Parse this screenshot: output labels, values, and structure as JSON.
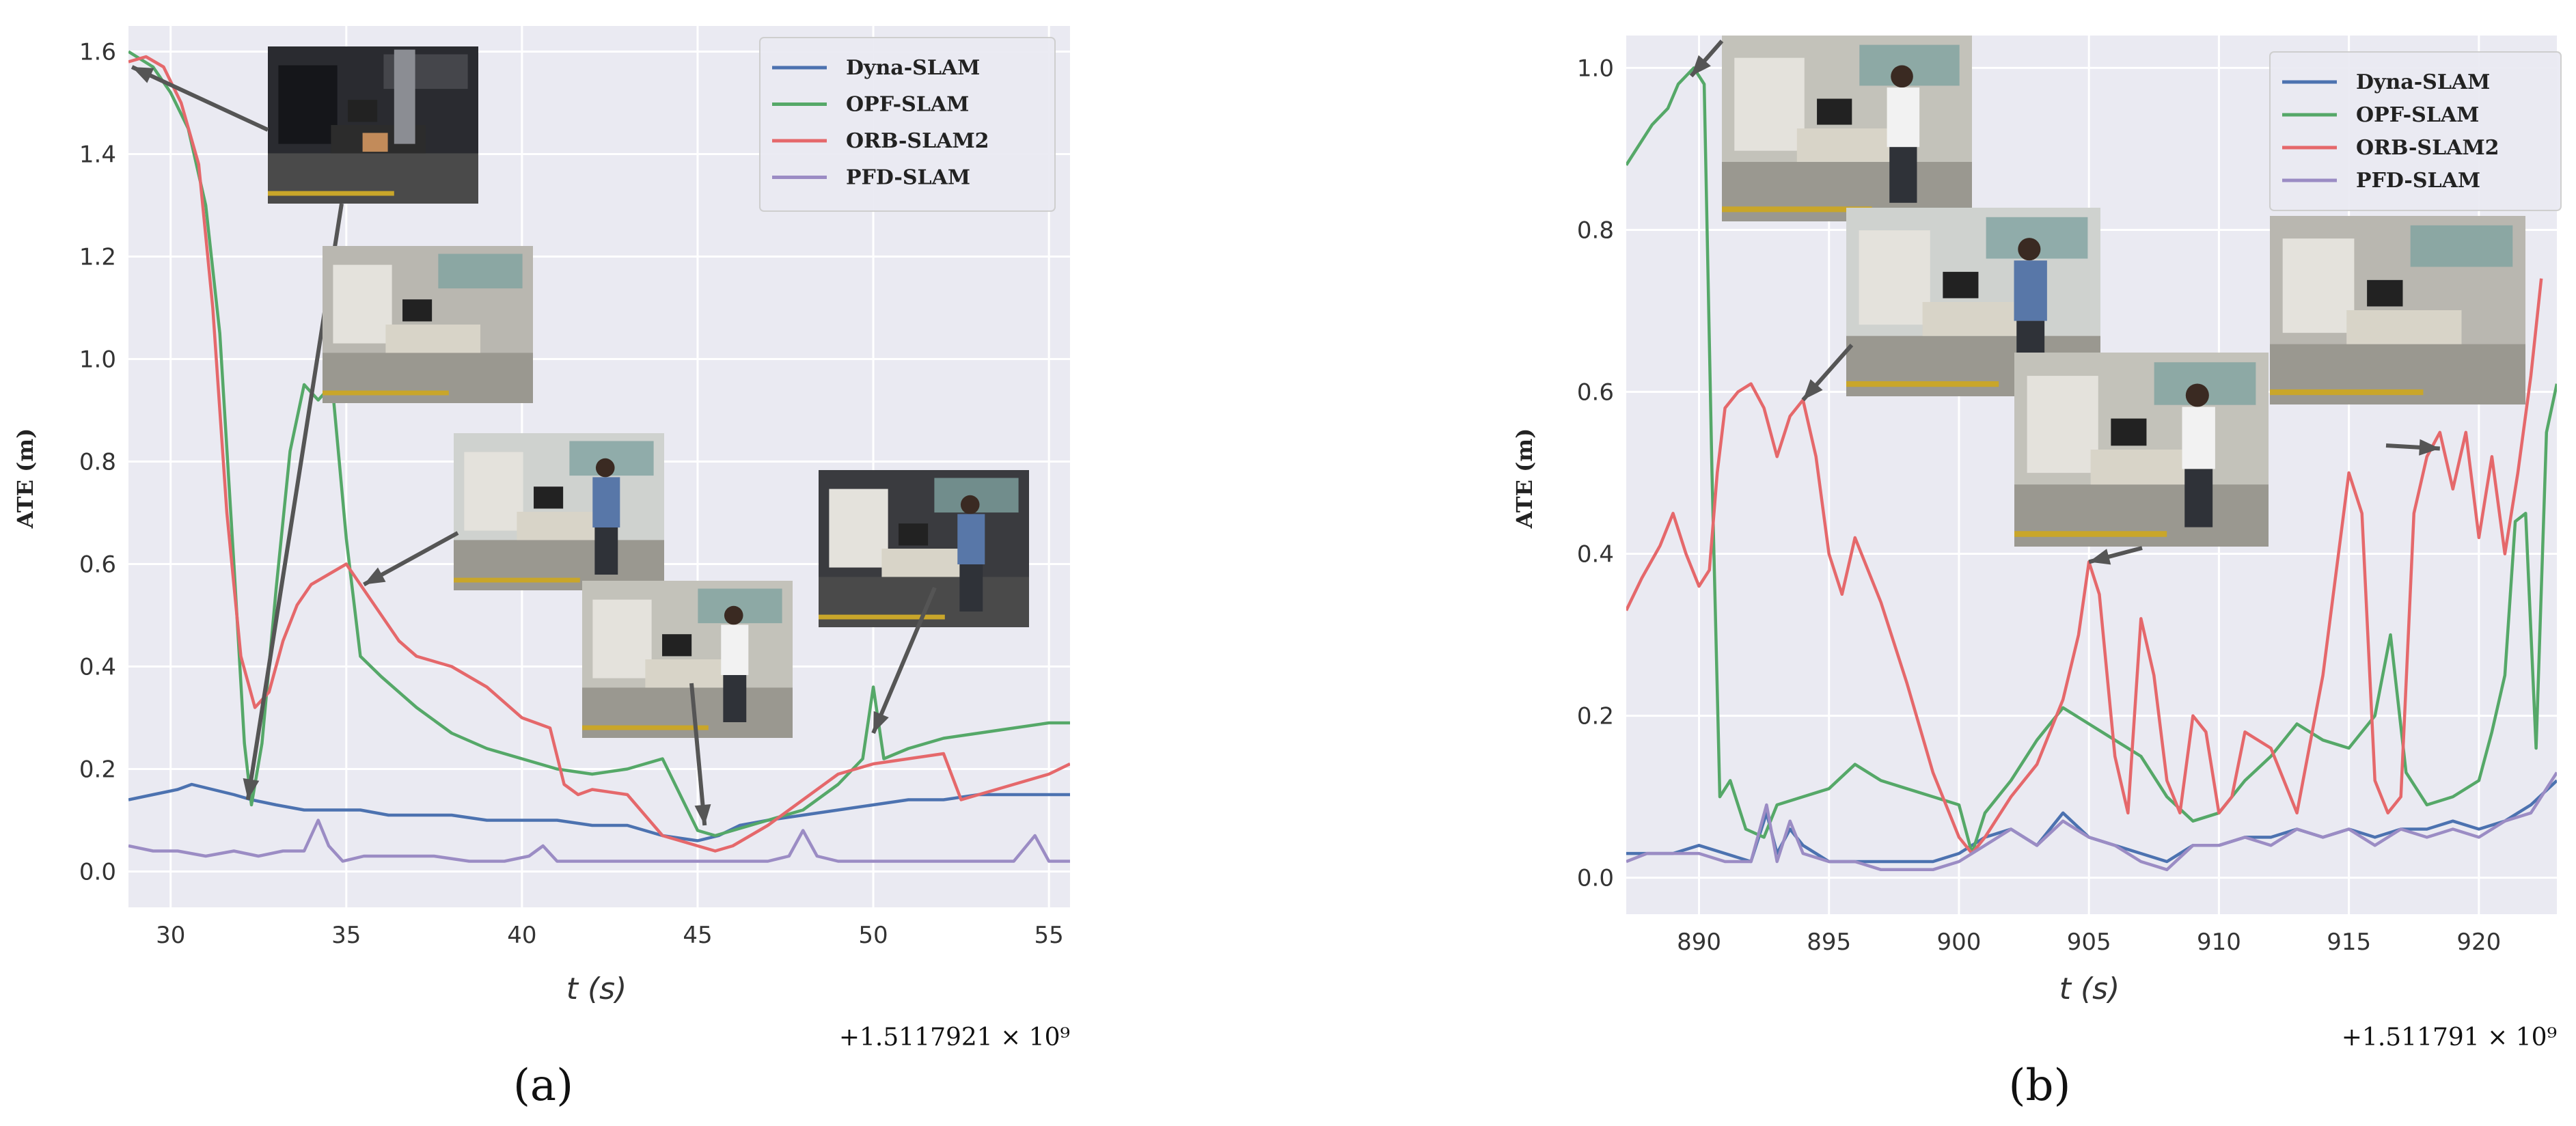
{
  "colors": {
    "plot_bg": "#eaeaf2",
    "grid": "#ffffff",
    "dyna": "#4c72b0",
    "opf": "#55a868",
    "orb": "#e5686b",
    "pfd": "#9b8cc4",
    "arrow": "#555555",
    "text": "#333333"
  },
  "chart_data": [
    {
      "type": "line",
      "panel_label": "(a)",
      "xlabel": "t (s)",
      "ylabel": "ATE (m)",
      "offset_label": "+1.5117921 × 10⁹",
      "xlim": [
        28.8,
        55.6
      ],
      "ylim": [
        -0.07,
        1.65
      ],
      "xticks": [
        30,
        35,
        40,
        45,
        50,
        55
      ],
      "yticks": [
        0.0,
        0.2,
        0.4,
        0.6,
        0.8,
        1.0,
        1.2,
        1.4,
        1.6
      ],
      "xtick_labels": [
        "30",
        "35",
        "40",
        "45",
        "50",
        "55"
      ],
      "ytick_labels": [
        "0.0",
        "0.2",
        "0.4",
        "0.6",
        "0.8",
        "1.0",
        "1.2",
        "1.4",
        "1.6"
      ],
      "legend": [
        "Dyna-SLAM",
        "OPF-SLAM",
        "ORB-SLAM2",
        "PFD-SLAM"
      ],
      "legend_position": "top-right",
      "series": [
        {
          "name": "Dyna-SLAM",
          "x": [
            28.8,
            29.5,
            30.2,
            30.6,
            31.2,
            31.8,
            32.3,
            33.0,
            33.8,
            34.6,
            35.4,
            36.2,
            37.0,
            38.0,
            39.0,
            40.0,
            41.0,
            42.0,
            43.0,
            44.0,
            45.0,
            45.6,
            46.2,
            47.0,
            48.0,
            49.0,
            50.0,
            51.0,
            52.0,
            53.0,
            54.0,
            55.0,
            55.6
          ],
          "y": [
            0.14,
            0.15,
            0.16,
            0.17,
            0.16,
            0.15,
            0.14,
            0.13,
            0.12,
            0.12,
            0.12,
            0.11,
            0.11,
            0.11,
            0.1,
            0.1,
            0.1,
            0.09,
            0.09,
            0.07,
            0.06,
            0.07,
            0.09,
            0.1,
            0.11,
            0.12,
            0.13,
            0.14,
            0.14,
            0.15,
            0.15,
            0.15,
            0.15
          ]
        },
        {
          "name": "OPF-SLAM",
          "x": [
            28.8,
            29.5,
            30.0,
            30.5,
            31.0,
            31.4,
            31.8,
            32.1,
            32.3,
            32.6,
            33.0,
            33.4,
            33.8,
            34.2,
            34.6,
            35.0,
            35.4,
            36.0,
            37.0,
            38.0,
            39.0,
            40.0,
            41.0,
            42.0,
            43.0,
            44.0,
            44.5,
            45.0,
            45.5,
            46.0,
            47.0,
            48.0,
            49.0,
            49.7,
            50.0,
            50.3,
            51.0,
            52.0,
            53.0,
            54.0,
            55.0,
            55.6
          ],
          "y": [
            1.6,
            1.57,
            1.52,
            1.45,
            1.3,
            1.05,
            0.6,
            0.25,
            0.13,
            0.25,
            0.55,
            0.82,
            0.95,
            0.92,
            0.95,
            0.65,
            0.42,
            0.38,
            0.32,
            0.27,
            0.24,
            0.22,
            0.2,
            0.19,
            0.2,
            0.22,
            0.15,
            0.08,
            0.07,
            0.08,
            0.1,
            0.12,
            0.17,
            0.22,
            0.36,
            0.22,
            0.24,
            0.26,
            0.27,
            0.28,
            0.29,
            0.29
          ]
        },
        {
          "name": "ORB-SLAM2",
          "x": [
            28.8,
            29.3,
            29.8,
            30.3,
            30.8,
            31.2,
            31.6,
            32.0,
            32.4,
            32.8,
            33.2,
            33.6,
            34.0,
            34.5,
            35.0,
            35.5,
            36.0,
            36.5,
            37.0,
            38.0,
            39.0,
            40.0,
            40.8,
            41.2,
            41.6,
            42.0,
            43.0,
            44.0,
            45.0,
            45.5,
            46.0,
            47.0,
            48.0,
            49.0,
            50.0,
            51.0,
            52.0,
            52.5,
            53.0,
            54.0,
            55.0,
            55.6
          ],
          "y": [
            1.58,
            1.59,
            1.57,
            1.5,
            1.38,
            1.1,
            0.7,
            0.42,
            0.32,
            0.35,
            0.45,
            0.52,
            0.56,
            0.58,
            0.6,
            0.55,
            0.5,
            0.45,
            0.42,
            0.4,
            0.36,
            0.3,
            0.28,
            0.17,
            0.15,
            0.16,
            0.15,
            0.07,
            0.05,
            0.04,
            0.05,
            0.09,
            0.14,
            0.19,
            0.21,
            0.22,
            0.23,
            0.14,
            0.15,
            0.17,
            0.19,
            0.21
          ]
        },
        {
          "name": "PFD-SLAM",
          "x": [
            28.8,
            29.5,
            30.2,
            31.0,
            31.8,
            32.5,
            33.2,
            33.8,
            34.2,
            34.5,
            34.9,
            35.5,
            36.5,
            37.5,
            38.5,
            39.5,
            40.2,
            40.6,
            41.0,
            42.0,
            43.0,
            44.0,
            45.0,
            46.0,
            47.0,
            47.6,
            48.0,
            48.4,
            49.0,
            50.0,
            51.0,
            52.0,
            53.0,
            54.0,
            54.6,
            55.0,
            55.6
          ],
          "y": [
            0.05,
            0.04,
            0.04,
            0.03,
            0.04,
            0.03,
            0.04,
            0.04,
            0.1,
            0.05,
            0.02,
            0.03,
            0.03,
            0.03,
            0.02,
            0.02,
            0.03,
            0.05,
            0.02,
            0.02,
            0.02,
            0.02,
            0.02,
            0.02,
            0.02,
            0.03,
            0.08,
            0.03,
            0.02,
            0.02,
            0.02,
            0.02,
            0.02,
            0.02,
            0.07,
            0.02,
            0.02
          ]
        }
      ],
      "insets": [
        {
          "name": "inset-a1",
          "scene": "dark",
          "arrow_to": [
            [
              28.9,
              1.57
            ],
            [
              32.2,
              0.14
            ]
          ]
        },
        {
          "name": "inset-a2",
          "scene": "office"
        },
        {
          "name": "inset-a3",
          "scene": "person",
          "arrow_to": [
            [
              35.5,
              0.56
            ]
          ]
        },
        {
          "name": "inset-a4",
          "scene": "lab",
          "arrow_to": [
            [
              45.2,
              0.09
            ]
          ]
        },
        {
          "name": "inset-a5",
          "scene": "person-dark",
          "arrow_to": [
            [
              50.0,
              0.27
            ]
          ]
        }
      ]
    },
    {
      "type": "line",
      "panel_label": "(b)",
      "xlabel": "t (s)",
      "ylabel": "ATE (m)",
      "offset_label": "+1.511791 × 10⁹",
      "xlim": [
        887.2,
        923.0
      ],
      "ylim": [
        -0.045,
        1.04
      ],
      "xticks": [
        890,
        895,
        900,
        905,
        910,
        915,
        920
      ],
      "yticks": [
        0.0,
        0.2,
        0.4,
        0.6,
        0.8,
        1.0
      ],
      "xtick_labels": [
        "890",
        "895",
        "900",
        "905",
        "910",
        "915",
        "920"
      ],
      "ytick_labels": [
        "0.0",
        "0.2",
        "0.4",
        "0.6",
        "0.8",
        "1.0"
      ],
      "legend": [
        "Dyna-SLAM",
        "OPF-SLAM",
        "ORB-SLAM2",
        "PFD-SLAM"
      ],
      "legend_position": "top-right",
      "series": [
        {
          "name": "Dyna-SLAM",
          "x": [
            887.2,
            888.0,
            889.0,
            890.0,
            891.0,
            892.0,
            892.6,
            893.0,
            893.5,
            894.0,
            895.0,
            896.0,
            897.0,
            898.0,
            899.0,
            900.0,
            901.0,
            902.0,
            903.0,
            904.0,
            905.0,
            906.0,
            907.0,
            908.0,
            909.0,
            910.0,
            911.0,
            912.0,
            913.0,
            914.0,
            915.0,
            916.0,
            917.0,
            918.0,
            919.0,
            920.0,
            921.0,
            922.0,
            923.0
          ],
          "y": [
            0.03,
            0.03,
            0.03,
            0.04,
            0.03,
            0.02,
            0.08,
            0.03,
            0.06,
            0.04,
            0.02,
            0.02,
            0.02,
            0.02,
            0.02,
            0.03,
            0.05,
            0.06,
            0.04,
            0.08,
            0.05,
            0.04,
            0.03,
            0.02,
            0.04,
            0.04,
            0.05,
            0.05,
            0.06,
            0.05,
            0.06,
            0.05,
            0.06,
            0.06,
            0.07,
            0.06,
            0.07,
            0.09,
            0.12
          ]
        },
        {
          "name": "OPF-SLAM",
          "x": [
            887.2,
            887.6,
            888.2,
            888.8,
            889.2,
            889.8,
            890.2,
            890.5,
            890.8,
            891.2,
            891.8,
            892.5,
            893.0,
            894.0,
            895.0,
            896.0,
            897.0,
            898.0,
            899.0,
            900.0,
            900.5,
            901.0,
            902.0,
            903.0,
            904.0,
            905.0,
            906.0,
            907.0,
            908.0,
            909.0,
            910.0,
            911.0,
            912.0,
            913.0,
            914.0,
            915.0,
            916.0,
            916.6,
            917.2,
            918.0,
            919.0,
            920.0,
            920.5,
            921.0,
            921.4,
            921.8,
            922.2,
            922.6,
            923.0
          ],
          "y": [
            0.88,
            0.9,
            0.93,
            0.95,
            0.98,
            1.0,
            0.98,
            0.5,
            0.1,
            0.12,
            0.06,
            0.05,
            0.09,
            0.1,
            0.11,
            0.14,
            0.12,
            0.11,
            0.1,
            0.09,
            0.03,
            0.08,
            0.12,
            0.17,
            0.21,
            0.19,
            0.17,
            0.15,
            0.1,
            0.07,
            0.08,
            0.12,
            0.15,
            0.19,
            0.17,
            0.16,
            0.2,
            0.3,
            0.13,
            0.09,
            0.1,
            0.12,
            0.18,
            0.25,
            0.44,
            0.45,
            0.16,
            0.55,
            0.61
          ]
        },
        {
          "name": "ORB-SLAM2",
          "x": [
            887.2,
            887.8,
            888.5,
            889.0,
            889.5,
            890.0,
            890.4,
            890.7,
            891.0,
            891.5,
            892.0,
            892.5,
            893.0,
            893.5,
            894.0,
            894.5,
            895.0,
            895.5,
            896.0,
            896.5,
            897.0,
            898.0,
            899.0,
            900.0,
            900.5,
            901.0,
            902.0,
            903.0,
            904.0,
            904.6,
            905.0,
            905.4,
            906.0,
            906.5,
            907.0,
            907.5,
            908.0,
            908.5,
            909.0,
            909.5,
            910.0,
            910.5,
            911.0,
            912.0,
            913.0,
            914.0,
            915.0,
            915.5,
            916.0,
            916.5,
            917.0,
            917.5,
            918.0,
            918.5,
            919.0,
            919.5,
            920.0,
            920.5,
            921.0,
            921.5,
            922.0,
            922.4
          ],
          "y": [
            0.33,
            0.37,
            0.41,
            0.45,
            0.4,
            0.36,
            0.38,
            0.5,
            0.58,
            0.6,
            0.61,
            0.58,
            0.52,
            0.57,
            0.59,
            0.52,
            0.4,
            0.35,
            0.42,
            0.38,
            0.34,
            0.24,
            0.13,
            0.05,
            0.03,
            0.05,
            0.1,
            0.14,
            0.22,
            0.3,
            0.39,
            0.35,
            0.15,
            0.08,
            0.32,
            0.25,
            0.12,
            0.08,
            0.2,
            0.18,
            0.08,
            0.1,
            0.18,
            0.16,
            0.08,
            0.25,
            0.5,
            0.45,
            0.12,
            0.08,
            0.1,
            0.45,
            0.52,
            0.55,
            0.48,
            0.55,
            0.42,
            0.52,
            0.4,
            0.5,
            0.62,
            0.74
          ]
        },
        {
          "name": "PFD-SLAM",
          "x": [
            887.2,
            888.0,
            889.0,
            890.0,
            891.0,
            892.0,
            892.6,
            893.0,
            893.5,
            894.0,
            895.0,
            896.0,
            897.0,
            898.0,
            899.0,
            900.0,
            901.0,
            902.0,
            903.0,
            904.0,
            905.0,
            906.0,
            907.0,
            908.0,
            909.0,
            910.0,
            911.0,
            912.0,
            913.0,
            914.0,
            915.0,
            916.0,
            917.0,
            918.0,
            919.0,
            920.0,
            921.0,
            922.0,
            923.0
          ],
          "y": [
            0.02,
            0.03,
            0.03,
            0.03,
            0.02,
            0.02,
            0.09,
            0.02,
            0.07,
            0.03,
            0.02,
            0.02,
            0.01,
            0.01,
            0.01,
            0.02,
            0.04,
            0.06,
            0.04,
            0.07,
            0.05,
            0.04,
            0.02,
            0.01,
            0.04,
            0.04,
            0.05,
            0.04,
            0.06,
            0.05,
            0.06,
            0.04,
            0.06,
            0.05,
            0.06,
            0.05,
            0.07,
            0.08,
            0.13
          ]
        }
      ],
      "insets": [
        {
          "name": "inset-b1",
          "scene": "lab",
          "arrow_to": [
            [
              889.7,
              0.99
            ]
          ]
        },
        {
          "name": "inset-b2",
          "scene": "person",
          "arrow_to": [
            [
              894.0,
              0.59
            ]
          ]
        },
        {
          "name": "inset-b3",
          "scene": "lab",
          "arrow_to": [
            [
              905.0,
              0.39
            ]
          ]
        },
        {
          "name": "inset-b4",
          "scene": "office",
          "arrow_to": [
            [
              918.5,
              0.53
            ]
          ]
        }
      ]
    }
  ]
}
